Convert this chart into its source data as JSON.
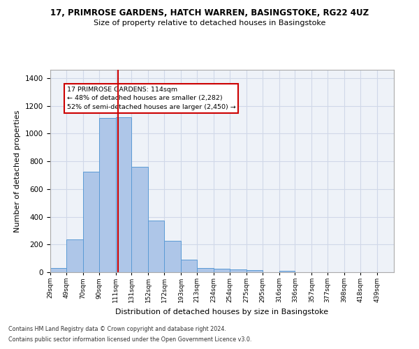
{
  "title1": "17, PRIMROSE GARDENS, HATCH WARREN, BASINGSTOKE, RG22 4UZ",
  "title2": "Size of property relative to detached houses in Basingstoke",
  "xlabel": "Distribution of detached houses by size in Basingstoke",
  "ylabel": "Number of detached properties",
  "bar_left_edges": [
    29,
    49,
    70,
    90,
    111,
    131,
    152,
    172,
    193,
    213,
    234,
    254,
    275,
    295,
    316,
    336,
    357,
    377,
    398,
    418
  ],
  "bar_widths": [
    20,
    21,
    20,
    21,
    20,
    21,
    20,
    21,
    20,
    21,
    20,
    21,
    20,
    21,
    20,
    21,
    20,
    21,
    20,
    21
  ],
  "bar_heights": [
    30,
    235,
    725,
    1115,
    1120,
    760,
    375,
    225,
    90,
    30,
    25,
    20,
    15,
    0,
    10,
    0,
    0,
    0,
    0,
    0
  ],
  "bar_color": "#aec6e8",
  "bar_edgecolor": "#5b9bd5",
  "grid_color": "#d0d8e8",
  "bg_color": "#eef2f8",
  "red_line_x": 114,
  "ylim": [
    0,
    1460
  ],
  "yticks": [
    0,
    200,
    400,
    600,
    800,
    1000,
    1200,
    1400
  ],
  "tick_labels": [
    "29sqm",
    "49sqm",
    "70sqm",
    "90sqm",
    "111sqm",
    "131sqm",
    "152sqm",
    "172sqm",
    "193sqm",
    "213sqm",
    "234sqm",
    "254sqm",
    "275sqm",
    "295sqm",
    "316sqm",
    "336sqm",
    "357sqm",
    "377sqm",
    "398sqm",
    "418sqm",
    "439sqm"
  ],
  "annotation_text": "17 PRIMROSE GARDENS: 114sqm\n← 48% of detached houses are smaller (2,282)\n52% of semi-detached houses are larger (2,450) →",
  "annotation_box_color": "#ffffff",
  "annotation_border_color": "#cc0000",
  "footnote1": "Contains HM Land Registry data © Crown copyright and database right 2024.",
  "footnote2": "Contains public sector information licensed under the Open Government Licence v3.0."
}
